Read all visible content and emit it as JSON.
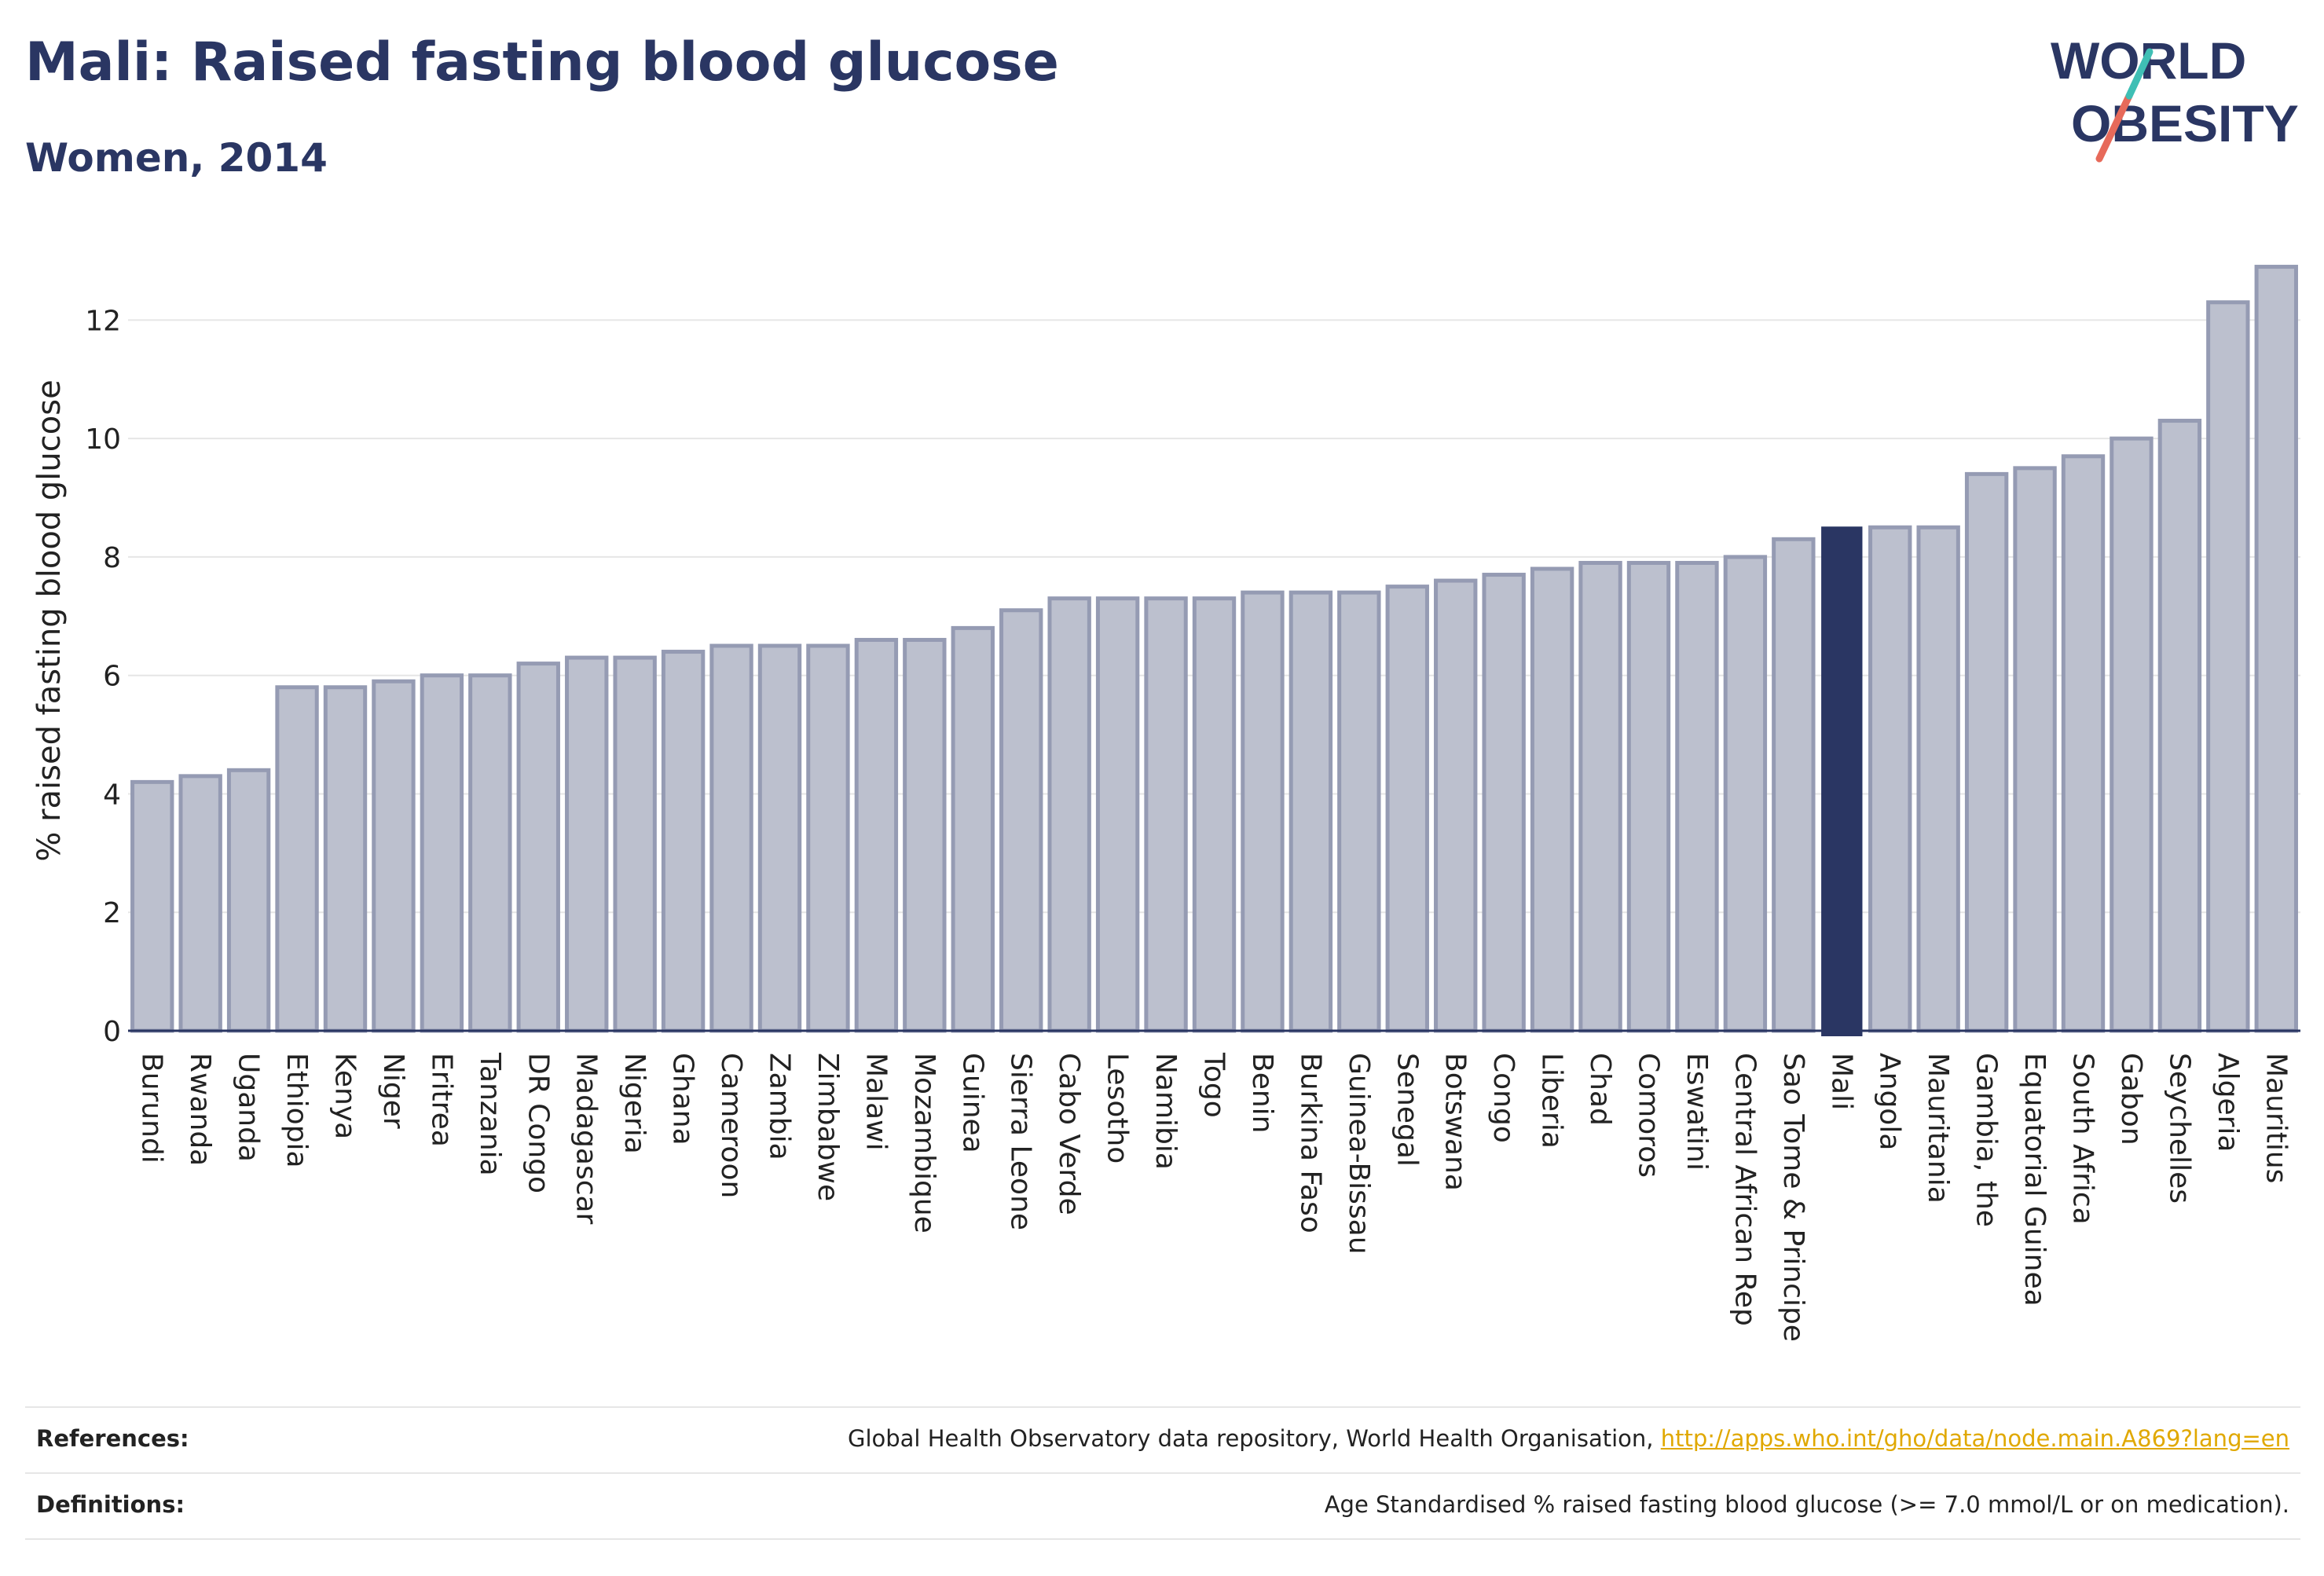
{
  "header": {
    "title": "Mali: Raised fasting blood glucose",
    "subtitle": "Women, 2014"
  },
  "logo": {
    "line1": "WORLD",
    "line2": "OBESITY"
  },
  "colors": {
    "highlight": "#2a3663",
    "bar_fill": "#bcc0ce",
    "bar_stroke": "#959bb3",
    "text": "#2a3663",
    "link": "#e0a800"
  },
  "chart_data": {
    "type": "bar",
    "title": "",
    "ylabel": "% raised fasting blood glucose",
    "ylim": [
      0,
      13
    ],
    "yticks": [
      0,
      2,
      4,
      6,
      8,
      10,
      12
    ],
    "grid": true,
    "highlight": "Mali",
    "categories": [
      "Burundi",
      "Rwanda",
      "Uganda",
      "Ethiopia",
      "Kenya",
      "Niger",
      "Eritrea",
      "Tanzania",
      "DR Congo",
      "Madagascar",
      "Nigeria",
      "Ghana",
      "Cameroon",
      "Zambia",
      "Zimbabwe",
      "Malawi",
      "Mozambique",
      "Guinea",
      "Sierra Leone",
      "Cabo Verde",
      "Lesotho",
      "Namibia",
      "Togo",
      "Benin",
      "Burkina Faso",
      "Guinea-Bissau",
      "Senegal",
      "Botswana",
      "Congo",
      "Liberia",
      "Chad",
      "Comoros",
      "Eswatini",
      "Central African Rep",
      "Sao Tome & Principe",
      "Mali",
      "Angola",
      "Mauritania",
      "Gambia, the",
      "Equatorial Guinea",
      "South Africa",
      "Gabon",
      "Seychelles",
      "Algeria",
      "Mauritius"
    ],
    "values": [
      4.2,
      4.3,
      4.4,
      5.8,
      5.8,
      5.9,
      6.0,
      6.0,
      6.2,
      6.3,
      6.3,
      6.4,
      6.5,
      6.5,
      6.5,
      6.6,
      6.6,
      6.8,
      7.1,
      7.3,
      7.3,
      7.3,
      7.3,
      7.4,
      7.4,
      7.4,
      7.5,
      7.6,
      7.7,
      7.8,
      7.9,
      7.9,
      7.9,
      8.0,
      8.3,
      8.5,
      8.5,
      8.5,
      9.4,
      9.5,
      9.7,
      10.0,
      10.3,
      12.3,
      12.9
    ]
  },
  "footer": {
    "references_label": "References:",
    "references_text": "Global Health Observatory data repository, World Health Organisation, ",
    "references_link": "http://apps.who.int/gho/data/node.main.A869?lang=en",
    "definitions_label": "Definitions:",
    "definitions_text": "Age Standardised % raised fasting blood glucose (>= 7.0 mmol/L or on medication)."
  }
}
